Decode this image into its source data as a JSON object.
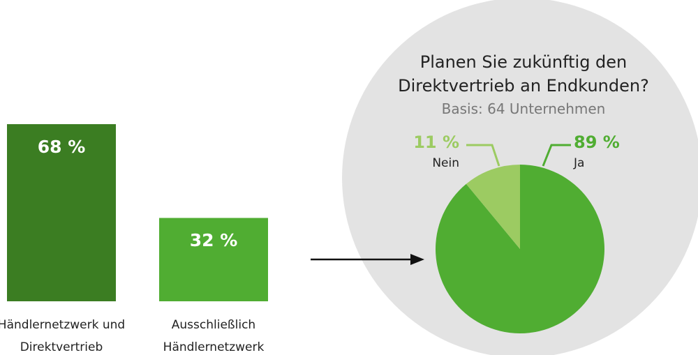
{
  "chart_data": [
    {
      "type": "bar",
      "categories": [
        "Händlernetzwerk und Direktvertrieb",
        "Ausschließlich Händlernetzwerk"
      ],
      "values": [
        68,
        32
      ],
      "value_labels": [
        "68 %",
        "32 %"
      ],
      "colors": [
        "#3b7d22",
        "#50ad32"
      ]
    },
    {
      "type": "pie",
      "title": "Planen Sie zukünftig den Direktvertrieb an Endkunden?",
      "subtitle": "Basis: 64 Unternehmen",
      "categories": [
        "Ja",
        "Nein"
      ],
      "values": [
        89,
        11
      ],
      "value_labels": [
        "89 %",
        "11 %"
      ],
      "colors": [
        "#50ad32",
        "#9ccb62"
      ]
    }
  ]
}
